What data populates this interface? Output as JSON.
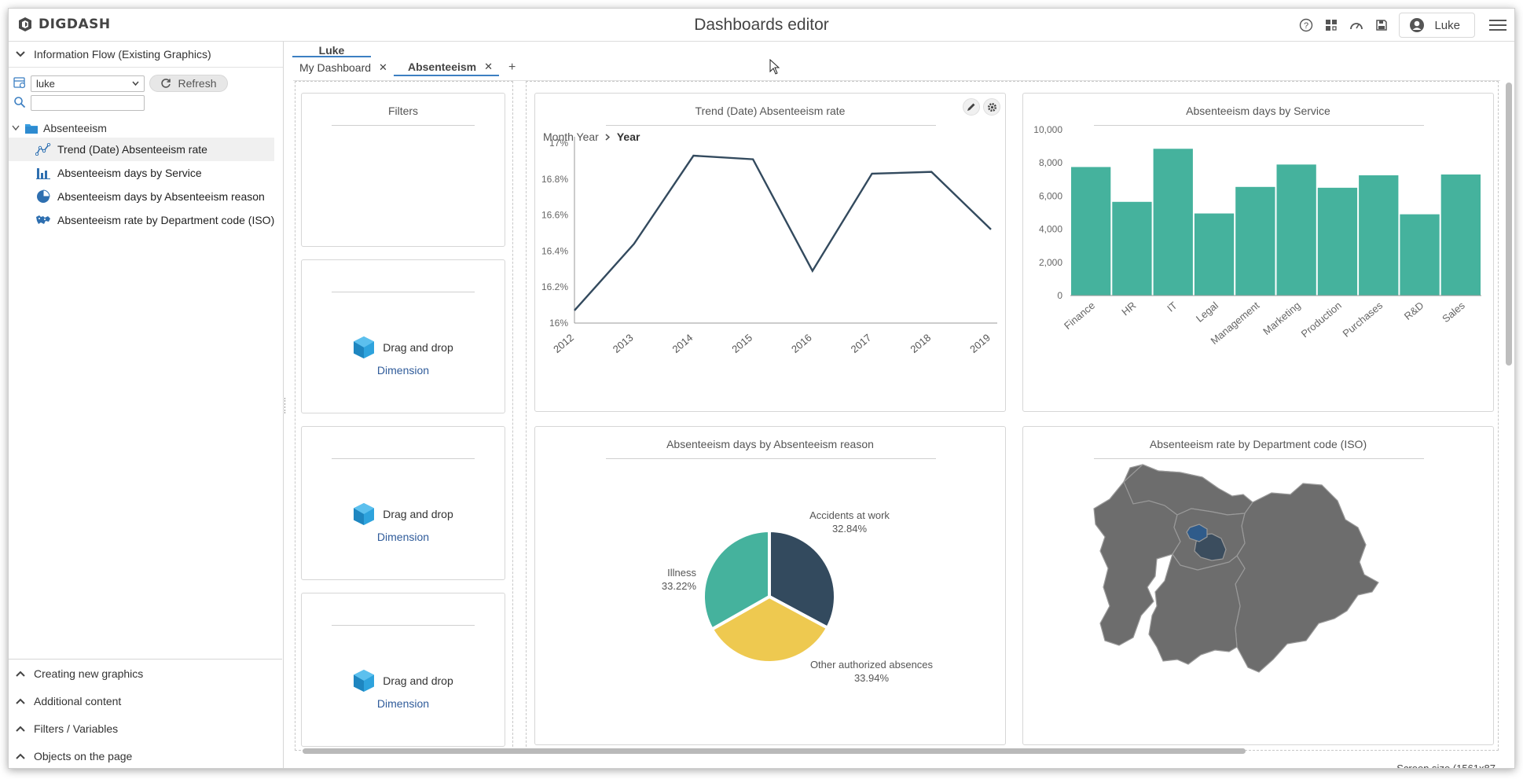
{
  "app": {
    "logo_text": "DIGDASH",
    "title": "Dashboards editor",
    "user_name": "Luke"
  },
  "left_panel": {
    "info_flow_title": "Information Flow (Existing Graphics)",
    "source_select_value": "luke",
    "refresh_label": "Refresh",
    "search_value": "",
    "folder_label": "Absenteeism",
    "items": [
      {
        "label": "Trend (Date) Absenteeism rate",
        "icon": "line-chart-icon"
      },
      {
        "label": "Absenteeism days by Service",
        "icon": "bar-chart-icon"
      },
      {
        "label": "Absenteeism days by Absenteeism reason",
        "icon": "pie-chart-icon"
      },
      {
        "label": "Absenteeism rate by Department code (ISO)",
        "icon": "map-icon"
      }
    ],
    "sections": [
      {
        "label": "Creating new graphics"
      },
      {
        "label": "Additional content"
      },
      {
        "label": "Filters / Variables"
      },
      {
        "label": "Objects on the page"
      }
    ]
  },
  "main": {
    "user_tab": "Luke",
    "tabs": [
      {
        "label": "My Dashboard"
      },
      {
        "label": "Absenteeism"
      }
    ],
    "add_tab": "+",
    "filters_title": "Filters",
    "dnd_label": "Drag and drop",
    "dnd_link": "Dimension",
    "screen_size": "Screen size (1561x87"
  },
  "charts": {
    "trend": {
      "title": "Trend (Date) Absenteeism rate",
      "drill_path_1": "Month Year",
      "drill_path_2": "Year"
    },
    "service": {
      "title": "Absenteeism days by Service"
    },
    "reason": {
      "title": "Absenteeism days by Absenteeism reason"
    },
    "department": {
      "title": "Absenteeism rate by Department code (ISO)"
    }
  },
  "colors": {
    "accent_blue": "#3c7fc2",
    "teal": "#45b29d",
    "dark_slate": "#334a5e",
    "yellow": "#eec950",
    "map_gray": "#6d6d6d",
    "map_highlight": "#2f5b8a"
  },
  "chart_data": [
    {
      "type": "line",
      "title": "Trend (Date) Absenteeism rate",
      "x": [
        "2012",
        "2013",
        "2014",
        "2015",
        "2016",
        "2017",
        "2018",
        "2019"
      ],
      "series": [
        {
          "values": [
            16.07,
            16.44,
            16.93,
            16.91,
            16.29,
            16.83,
            16.84,
            16.52
          ]
        }
      ],
      "ylim": [
        16,
        17
      ],
      "yticks": [
        "16%",
        "16.2%",
        "16.4%",
        "16.6%",
        "16.8%",
        "17%"
      ],
      "grid": false
    },
    {
      "type": "bar",
      "title": "Absenteeism days by Service",
      "categories": [
        "Finance",
        "HR",
        "IT",
        "Legal",
        "Management",
        "Marketing",
        "Production",
        "Purchases",
        "R&D",
        "Sales"
      ],
      "values": [
        7750,
        5650,
        8850,
        4950,
        6550,
        7900,
        6500,
        7250,
        4900,
        7300
      ],
      "ylim": [
        0,
        10000
      ],
      "yticks": [
        "0",
        "2,000",
        "4,000",
        "6,000",
        "8,000",
        "10,000"
      ],
      "grid": false
    },
    {
      "type": "pie",
      "title": "Absenteeism days by Absenteeism reason",
      "slices": [
        {
          "label": "Accidents at work",
          "pct": "32.84%",
          "value": 32.84
        },
        {
          "label": "Other authorized absences",
          "pct": "33.94%",
          "value": 33.94
        },
        {
          "label": "Illness",
          "pct": "33.22%",
          "value": 33.22
        }
      ]
    }
  ]
}
